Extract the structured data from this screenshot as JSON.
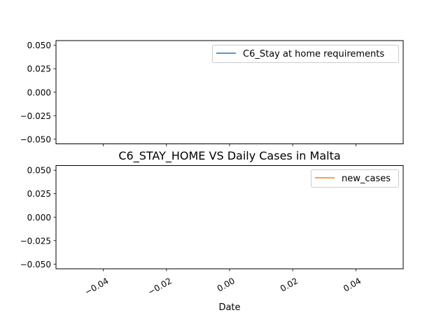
{
  "figure": {
    "title": "C6_STAY_HOME VS Daily Cases in Malta",
    "xlabel": "Date"
  },
  "chart_data": [
    {
      "type": "line",
      "title": "",
      "xlabel": "",
      "ylabel": "",
      "xlim": [
        -0.055,
        0.055
      ],
      "ylim": [
        -0.055,
        0.055
      ],
      "x_ticks": [
        "−0.04",
        "−0.02",
        "0.00",
        "0.02",
        "0.04"
      ],
      "y_ticks": [
        "0.050",
        "0.025",
        "0.000",
        "−0.025",
        "−0.050"
      ],
      "series": [
        {
          "name": "C6_Stay at home requirements",
          "color": "#1f77b4",
          "x": [],
          "values": []
        }
      ],
      "legend": "top-right",
      "grid": false
    },
    {
      "type": "line",
      "title": "C6_STAY_HOME VS Daily Cases in Malta",
      "xlabel": "Date",
      "ylabel": "",
      "xlim": [
        -0.055,
        0.055
      ],
      "ylim": [
        -0.055,
        0.055
      ],
      "x_ticks": [
        "−0.04",
        "−0.02",
        "0.00",
        "0.02",
        "0.04"
      ],
      "y_ticks": [
        "0.050",
        "0.025",
        "0.000",
        "−0.025",
        "−0.050"
      ],
      "series": [
        {
          "name": "new_cases",
          "color": "#ff7f0e",
          "x": [],
          "values": []
        }
      ],
      "legend": "top-right",
      "grid": false
    }
  ]
}
